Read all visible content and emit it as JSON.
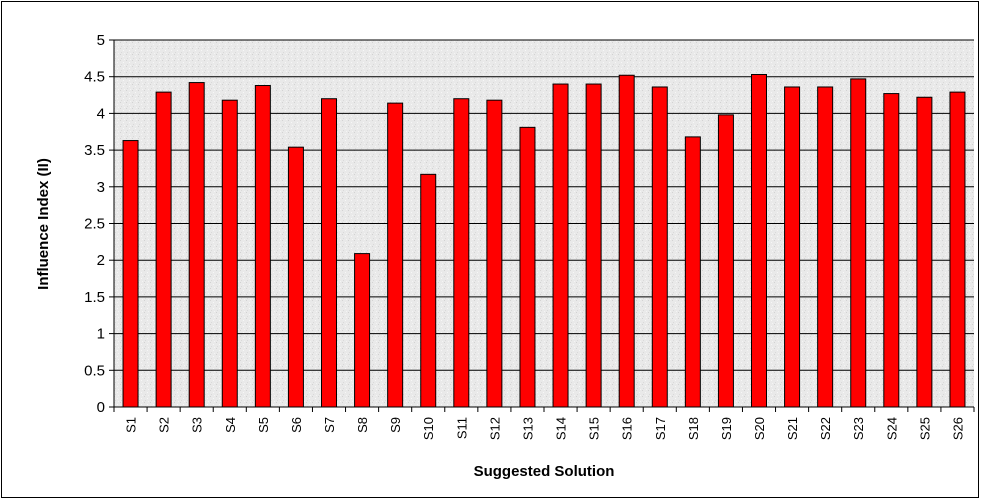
{
  "chart_data": {
    "type": "bar",
    "title": "",
    "xlabel": "Suggested Solution",
    "ylabel": "Influence Index (II)",
    "ylim": [
      0,
      5
    ],
    "yticks": [
      0,
      0.5,
      1,
      1.5,
      2,
      2.5,
      3,
      3.5,
      4,
      4.5,
      5
    ],
    "grid": true,
    "legend": "none",
    "bar_color": "#ff0000",
    "categories": [
      "S1",
      "S2",
      "S3",
      "S4",
      "S5",
      "S6",
      "S7",
      "S8",
      "S9",
      "S10",
      "S11",
      "S12",
      "S13",
      "S14",
      "S15",
      "S16",
      "S17",
      "S18",
      "S19",
      "S20",
      "S21",
      "S22",
      "S23",
      "S24",
      "S25",
      "S26"
    ],
    "values": [
      3.63,
      4.29,
      4.42,
      4.18,
      4.38,
      3.54,
      4.2,
      2.09,
      4.14,
      3.17,
      4.2,
      4.18,
      3.81,
      4.4,
      4.4,
      4.52,
      4.36,
      3.68,
      3.98,
      4.53,
      4.36,
      4.36,
      4.47,
      4.27,
      4.22,
      4.29
    ]
  }
}
